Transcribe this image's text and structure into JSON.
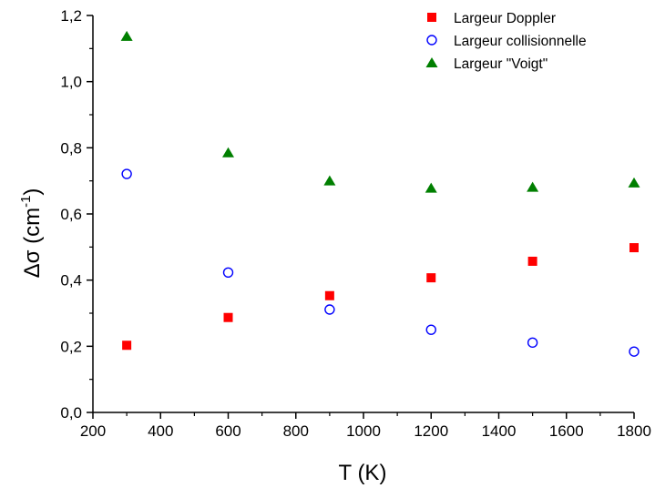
{
  "chart_data": {
    "type": "scatter",
    "xlabel": "T (K)",
    "ylabel": {
      "main": "Δσ (cm",
      "sup": "-1",
      "close": ")"
    },
    "xlim": [
      200,
      1800
    ],
    "ylim": [
      0.0,
      1.2
    ],
    "x_ticks": [
      "200",
      "400",
      "600",
      "800",
      "1000",
      "1200",
      "1400",
      "1600",
      "1800"
    ],
    "y_ticks": [
      "0,0",
      "0,2",
      "0,4",
      "0,6",
      "0,8",
      "1,0",
      "1,2"
    ],
    "grid": false,
    "legend_position": "top-right",
    "series": [
      {
        "name": "Largeur Doppler",
        "marker": "square",
        "color": "#ff0000",
        "x": [
          300,
          600,
          900,
          1200,
          1500,
          1800
        ],
        "y": [
          0.203,
          0.287,
          0.353,
          0.407,
          0.457,
          0.498
        ]
      },
      {
        "name": "Largeur collisionnelle",
        "marker": "open-circle",
        "color": "#0000ff",
        "x": [
          300,
          600,
          900,
          1200,
          1500,
          1800
        ],
        "y": [
          0.721,
          0.423,
          0.311,
          0.25,
          0.211,
          0.184
        ]
      },
      {
        "name": "Largeur \"Voigt\"",
        "marker": "triangle",
        "color": "#007f00",
        "x": [
          300,
          600,
          900,
          1200,
          1500,
          1800
        ],
        "y": [
          1.137,
          0.785,
          0.7,
          0.678,
          0.681,
          0.694
        ]
      }
    ]
  }
}
